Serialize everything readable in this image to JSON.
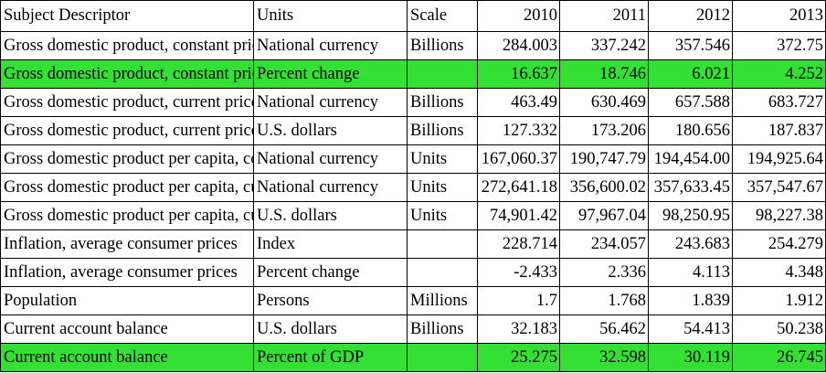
{
  "table": {
    "headers": [
      "Subject Descriptor",
      "Units",
      "Scale",
      "2010",
      "2011",
      "2012",
      "2013"
    ],
    "highlight_color": "#33e033",
    "rows": [
      {
        "subject": "Gross domestic product, constant prices",
        "units": "National currency",
        "scale": "Billions",
        "y2010": "284.003",
        "y2011": "337.242",
        "y2012": "357.546",
        "y2013": "372.75",
        "highlight": false
      },
      {
        "subject": "Gross domestic product, constant prices",
        "units": "Percent change",
        "scale": "",
        "y2010": "16.637",
        "y2011": "18.746",
        "y2012": "6.021",
        "y2013": "4.252",
        "highlight": true
      },
      {
        "subject": "Gross domestic product, current prices",
        "units": "National currency",
        "scale": "Billions",
        "y2010": "463.49",
        "y2011": "630.469",
        "y2012": "657.588",
        "y2013": "683.727",
        "highlight": false
      },
      {
        "subject": "Gross domestic product, current prices",
        "units": "U.S. dollars",
        "scale": "Billions",
        "y2010": "127.332",
        "y2011": "173.206",
        "y2012": "180.656",
        "y2013": "187.837",
        "highlight": false
      },
      {
        "subject": "Gross domestic product per capita, constant prices",
        "units": "National currency",
        "scale": "Units",
        "y2010": "167,060.37",
        "y2011": "190,747.79",
        "y2012": "194,454.00",
        "y2013": "194,925.64",
        "highlight": false
      },
      {
        "subject": "Gross domestic product per capita, current prices",
        "units": "National currency",
        "scale": "Units",
        "y2010": "272,641.18",
        "y2011": "356,600.02",
        "y2012": "357,633.45",
        "y2013": "357,547.67",
        "highlight": false
      },
      {
        "subject": "Gross domestic product per capita, current prices",
        "units": "U.S. dollars",
        "scale": "Units",
        "y2010": "74,901.42",
        "y2011": "97,967.04",
        "y2012": "98,250.95",
        "y2013": "98,227.38",
        "highlight": false
      },
      {
        "subject": "Inflation, average consumer prices",
        "units": "Index",
        "scale": "",
        "y2010": "228.714",
        "y2011": "234.057",
        "y2012": "243.683",
        "y2013": "254.279",
        "highlight": false
      },
      {
        "subject": "Inflation, average consumer prices",
        "units": "Percent change",
        "scale": "",
        "y2010": "-2.433",
        "y2011": "2.336",
        "y2012": "4.113",
        "y2013": "4.348",
        "highlight": false
      },
      {
        "subject": "Population",
        "units": "Persons",
        "scale": "Millions",
        "y2010": "1.7",
        "y2011": "1.768",
        "y2012": "1.839",
        "y2013": "1.912",
        "highlight": false
      },
      {
        "subject": "Current account balance",
        "units": "U.S. dollars",
        "scale": "Billions",
        "y2010": "32.183",
        "y2011": "56.462",
        "y2012": "54.413",
        "y2013": "50.238",
        "highlight": false
      },
      {
        "subject": "Current account balance",
        "units": "Percent of GDP",
        "scale": "",
        "y2010": "25.275",
        "y2011": "32.598",
        "y2012": "30.119",
        "y2013": "26.745",
        "highlight": true
      }
    ]
  }
}
